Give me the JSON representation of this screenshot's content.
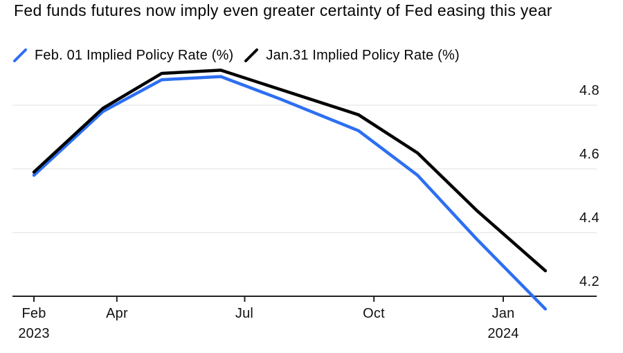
{
  "title": "Fed funds futures now imply even greater certainty of Fed easing this year",
  "colors": {
    "accent_blue": "#2D6FF2",
    "series_black": "#000000",
    "gridline": "#EAEAEA",
    "axis": "#222222",
    "text": "#050505",
    "background": "#FFFFFF"
  },
  "chart_data": {
    "type": "line",
    "title": "Fed funds futures now imply even greater certainty of Fed easing this year",
    "xlabel": "",
    "ylabel": "",
    "legend_position": "top",
    "grid": "horizontal-only",
    "y_axis": {
      "side": "right",
      "range": [
        4.2,
        4.95
      ],
      "baseline_value": 4.2,
      "gridlines": [
        4.8,
        4.6,
        4.4
      ],
      "ticks": [
        {
          "label": "4.8",
          "value": 4.8
        },
        {
          "label": "4.6",
          "value": 4.6
        },
        {
          "label": "4.4",
          "value": 4.4
        },
        {
          "label": "4.2",
          "value": 4.2
        }
      ]
    },
    "x_axis": {
      "ticks": [
        {
          "label": "Feb",
          "sublabel": "2023",
          "date": "2023-02-01"
        },
        {
          "label": "Apr",
          "date": "2023-04-01"
        },
        {
          "label": "Jul",
          "date": "2023-07-01"
        },
        {
          "label": "Oct",
          "date": "2023-10-01"
        },
        {
          "label": "Jan",
          "sublabel": "2024",
          "date": "2024-01-01"
        }
      ]
    },
    "series": [
      {
        "id": "feb01",
        "name": "Feb. 01 Implied Policy Rate (%)",
        "color": "#2D6FF2",
        "points": [
          {
            "date": "2023-02-01",
            "value": 4.58
          },
          {
            "date": "2023-03-22",
            "value": 4.78
          },
          {
            "date": "2023-05-03",
            "value": 4.88
          },
          {
            "date": "2023-06-14",
            "value": 4.89
          },
          {
            "date": "2023-07-26",
            "value": 4.82
          },
          {
            "date": "2023-09-20",
            "value": 4.72
          },
          {
            "date": "2023-11-01",
            "value": 4.58
          },
          {
            "date": "2023-12-13",
            "value": 4.38
          },
          {
            "date": "2024-01-31",
            "value": 4.16
          }
        ]
      },
      {
        "id": "jan31",
        "name": "Jan.31 Implied Policy Rate (%)",
        "color": "#000000",
        "points": [
          {
            "date": "2023-02-01",
            "value": 4.59
          },
          {
            "date": "2023-03-22",
            "value": 4.79
          },
          {
            "date": "2023-05-03",
            "value": 4.9
          },
          {
            "date": "2023-06-14",
            "value": 4.91
          },
          {
            "date": "2023-07-26",
            "value": 4.85
          },
          {
            "date": "2023-09-20",
            "value": 4.77
          },
          {
            "date": "2023-11-01",
            "value": 4.65
          },
          {
            "date": "2023-12-13",
            "value": 4.47
          },
          {
            "date": "2024-01-31",
            "value": 4.28
          }
        ]
      }
    ]
  }
}
